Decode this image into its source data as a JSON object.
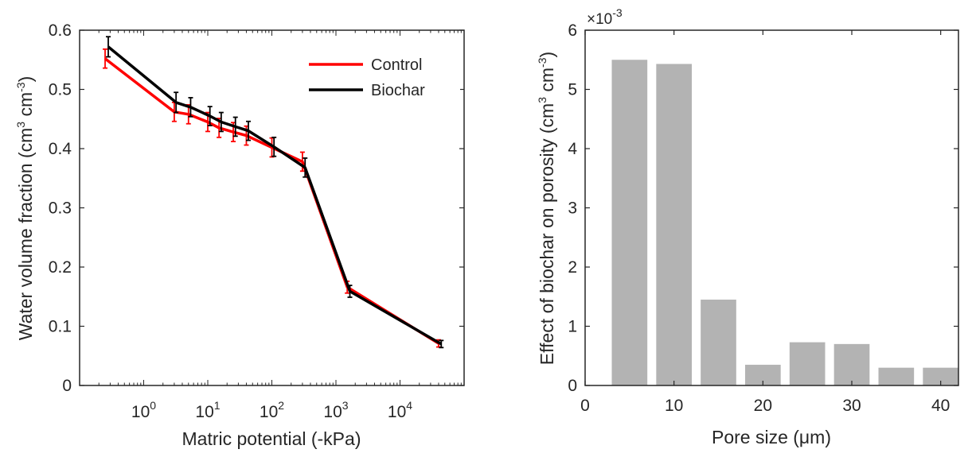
{
  "chart_data": [
    {
      "type": "line",
      "xlabel": "Matric potential (-kPa)",
      "ylabel": "Water volume fraction (cm³ cm⁻³)",
      "ylabel_parts": [
        "Water volume fraction (cm",
        "3",
        " cm",
        "-3",
        ")"
      ],
      "xscale": "log",
      "xlim": [
        0.1,
        100000
      ],
      "ylim": [
        0,
        0.6
      ],
      "xticks": [
        {
          "value": 1,
          "base": "10",
          "exp": "0"
        },
        {
          "value": 10,
          "base": "10",
          "exp": "1"
        },
        {
          "value": 100,
          "base": "10",
          "exp": "2"
        },
        {
          "value": 1000,
          "base": "10",
          "exp": "3"
        },
        {
          "value": 10000,
          "base": "10",
          "exp": "4"
        }
      ],
      "yticks": [
        0,
        0.1,
        0.2,
        0.3,
        0.4,
        0.5,
        0.6
      ],
      "ytick_labels": [
        "0",
        "0.1",
        "0.2",
        "0.3",
        "0.4",
        "0.5",
        "0.6"
      ],
      "legend": "top-right",
      "series": [
        {
          "name": "Control",
          "color": "#ff0000",
          "x": [
            0.25,
            3,
            5,
            10,
            15,
            25,
            40,
            100,
            300,
            1500,
            40000
          ],
          "y": [
            0.552,
            0.462,
            0.458,
            0.445,
            0.435,
            0.428,
            0.422,
            0.402,
            0.378,
            0.166,
            0.071
          ],
          "err": [
            0.016,
            0.016,
            0.016,
            0.016,
            0.016,
            0.016,
            0.016,
            0.016,
            0.016,
            0.01,
            0.006
          ]
        },
        {
          "name": "Biochar",
          "color": "#000000",
          "x": [
            0.28,
            3.2,
            5.4,
            10.8,
            16.2,
            27,
            43,
            108,
            330,
            1650,
            44000
          ],
          "y": [
            0.572,
            0.478,
            0.47,
            0.455,
            0.445,
            0.437,
            0.43,
            0.403,
            0.368,
            0.159,
            0.07
          ],
          "err": [
            0.017,
            0.017,
            0.016,
            0.016,
            0.016,
            0.016,
            0.016,
            0.016,
            0.016,
            0.01,
            0.006
          ]
        }
      ]
    },
    {
      "type": "bar",
      "xlabel": "Pore size (μm)",
      "ylabel": "Effect of biochar on porosity (cm³ cm⁻³)",
      "ylabel_parts": [
        "Effect of biochar on porosity (cm",
        "3",
        " cm",
        "-3",
        ")"
      ],
      "scale_label": {
        "base": "×10",
        "exp": "-3"
      },
      "x": [
        5,
        10,
        15,
        20,
        25,
        30,
        35,
        40
      ],
      "values": [
        5.5,
        5.43,
        1.45,
        0.35,
        0.73,
        0.7,
        0.3,
        0.3
      ],
      "value_multiplier": 0.001,
      "bar_color": "#b3b3b3",
      "xlim": [
        0,
        42
      ],
      "ylim": [
        0,
        6
      ],
      "xticks": [
        0,
        10,
        20,
        30,
        40
      ],
      "xtick_labels": [
        "0",
        "10",
        "20",
        "30",
        "40"
      ],
      "yticks": [
        0,
        1,
        2,
        3,
        4,
        5,
        6
      ],
      "ytick_labels": [
        "0",
        "1",
        "2",
        "3",
        "4",
        "5",
        "6"
      ]
    }
  ]
}
